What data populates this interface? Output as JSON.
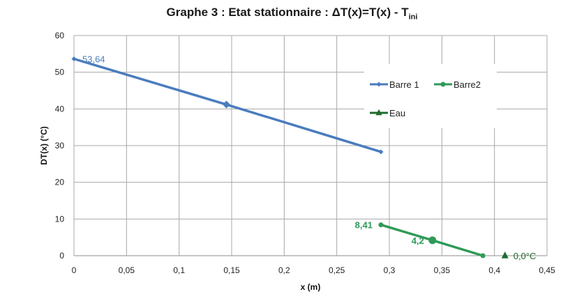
{
  "chart_data": {
    "type": "line",
    "title_main": "Graphe 3 : Etat stationnaire : ΔT(x)=T(x) - T",
    "title_sub": "ini",
    "xlabel": "x (m)",
    "ylabel": "DT(x) (°C)",
    "xlim": [
      0,
      0.45
    ],
    "ylim": [
      0,
      60
    ],
    "x_ticks": [
      0,
      0.05,
      0.1,
      0.15,
      0.2,
      0.25,
      0.3,
      0.35,
      0.4,
      0.45
    ],
    "x_tick_labels": [
      "0",
      "0,05",
      "0,1",
      "0,15",
      "0,2",
      "0,25",
      "0,3",
      "0,35",
      "0,4",
      "0,45"
    ],
    "y_ticks": [
      0,
      10,
      20,
      30,
      40,
      50,
      60
    ],
    "y_tick_labels": [
      "0",
      "10",
      "20",
      "30",
      "40",
      "50",
      "60"
    ],
    "grid": true,
    "legend_position": "right, upper-middle",
    "series": [
      {
        "name": "Barre 1",
        "color": "#4a7cbe",
        "marker": "diamond",
        "points": [
          [
            0,
            53.64
          ],
          [
            0.145,
            41.2
          ],
          [
            0.292,
            28.3
          ]
        ],
        "big_marker_index": 1,
        "data_labels": [
          {
            "index": 0,
            "text": "53,64",
            "position": "right"
          }
        ]
      },
      {
        "name": "Barre2",
        "color": "#2e9a58",
        "marker": "circle",
        "points": [
          [
            0.292,
            8.41
          ],
          [
            0.341,
            4.2
          ],
          [
            0.389,
            0
          ]
        ],
        "big_marker_index": 1,
        "data_labels": [
          {
            "index": 0,
            "text": "8,41",
            "position": "left"
          },
          {
            "index": 1,
            "text": "4,2",
            "position": "left"
          }
        ]
      },
      {
        "name": "Eau",
        "color": "#1f6b2e",
        "marker": "triangle",
        "points": [
          [
            0.41,
            0
          ]
        ],
        "data_labels": [
          {
            "index": 0,
            "text": "0,0°C",
            "position": "right"
          }
        ]
      }
    ]
  }
}
